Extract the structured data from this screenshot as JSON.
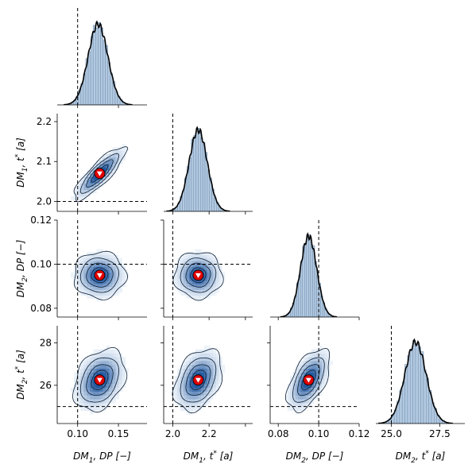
{
  "chart_data": {
    "type": "corner",
    "parameters": [
      {
        "key": "p0",
        "label": "DM₁, DP [−]",
        "label_parts": [
          "DM",
          "1",
          ", DP [−]"
        ],
        "lim": [
          0.075,
          0.185
        ],
        "ticks": [
          0.1,
          0.15
        ],
        "tick_labels": [
          "0.10",
          "0.15"
        ],
        "truth": 0.1,
        "median": 0.127,
        "sd": 0.012,
        "hist_peak": 0.125
      },
      {
        "key": "p1",
        "label": "DM₁, t* [a]",
        "label_parts": [
          "DM",
          "1",
          ", t",
          "*",
          " [a]"
        ],
        "lim": [
          1.975,
          2.22
        ],
        "ticks": [
          2.0,
          2.1,
          2.2
        ],
        "tick_labels": [
          "2.0",
          "2.1",
          "2.2"
        ],
        "x_tick_labels": [
          "2.0",
          "2.2"
        ],
        "truth": 2.0,
        "median": 2.07,
        "sd": 0.025
      },
      {
        "key": "p2",
        "label": "DM₂, DP [−]",
        "label_parts": [
          "DM",
          "2",
          ", DP [−]"
        ],
        "lim": [
          0.076,
          0.12
        ],
        "ticks": [
          0.08,
          0.1,
          0.12
        ],
        "tick_labels": [
          "0.08",
          "0.10",
          "0.12"
        ],
        "x_tick_labels": [
          "0.08",
          "0.10",
          "0.12"
        ],
        "truth": 0.1,
        "median": 0.095,
        "sd": 0.004
      },
      {
        "key": "p3",
        "label": "DM₂, t* [a]",
        "label_parts": [
          "DM",
          "2",
          ", t",
          "*",
          " [a]"
        ],
        "lim": [
          24.2,
          28.8
        ],
        "ticks": [
          26,
          28
        ],
        "tick_labels": [
          "26",
          "28"
        ],
        "x_ticks": [
          25.0,
          27.5
        ],
        "x_tick_labels": [
          "25.0",
          "27.5"
        ],
        "truth": 25.0,
        "median": 26.25,
        "sd": 0.55
      }
    ],
    "marginals": "histogram + KDE per parameter (diagonal)",
    "pair_plots": "2D histogram + KDE contours (lower triangle)",
    "correlations": [
      [
        1,
        0.85,
        0.0,
        0.3
      ],
      [
        0.85,
        1,
        0.0,
        0.35
      ],
      [
        0.0,
        0.0,
        1,
        0.55
      ],
      [
        0.3,
        0.35,
        0.55,
        1
      ]
    ],
    "markers": "red circle with white triangle at posterior mode",
    "colors": {
      "hist": "#b3c9e0",
      "heat": "#1f6fb4",
      "marker": "#e00000",
      "truth_line": "#000000"
    }
  }
}
